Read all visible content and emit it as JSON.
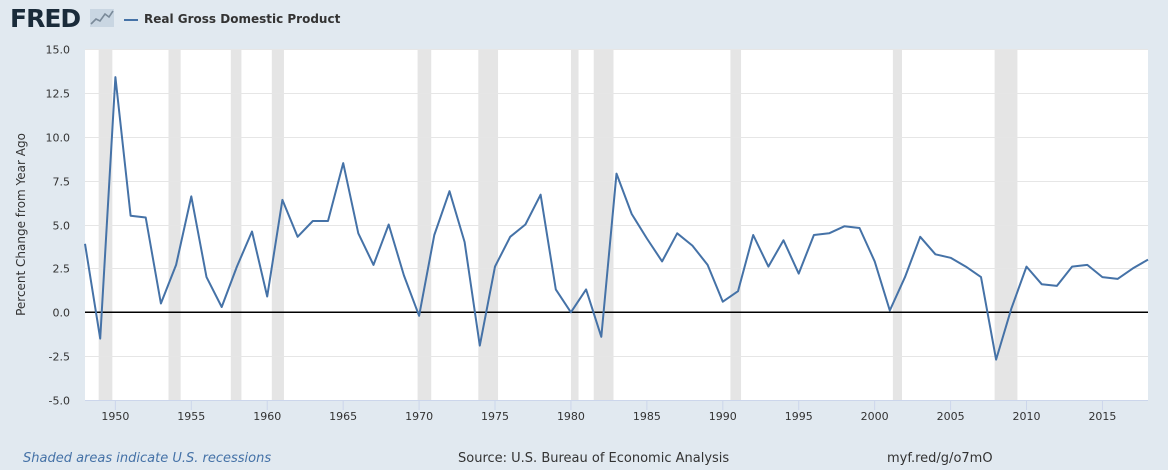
{
  "header": {
    "logo_text": "FRED",
    "legend_label": "Real Gross Domestic Product"
  },
  "footer": {
    "recession_note": "Shaded areas indicate U.S. recessions",
    "source": "Source: U.S. Bureau of Economic Analysis",
    "short_url": "myf.red/g/o7mO"
  },
  "colors": {
    "series": "#4572a7",
    "background": "#e1e9f0",
    "plot_background": "#ffffff",
    "recession_shade": "#e5e5e5",
    "zero_line": "#000000"
  },
  "chart_data": {
    "type": "line",
    "title": "",
    "xlabel": "",
    "ylabel": "Percent Change from Year Ago",
    "xlim": [
      1948.0,
      2018.0
    ],
    "ylim": [
      -5.0,
      15.0
    ],
    "grid": true,
    "legend": "top-left",
    "y_ticks": [
      "15.0",
      "12.5",
      "10.0",
      "7.5",
      "5.0",
      "2.5",
      "0.0",
      "-2.5",
      "-5.0"
    ],
    "x_ticks": [
      "1950",
      "1955",
      "1960",
      "1965",
      "1970",
      "1975",
      "1980",
      "1985",
      "1990",
      "1995",
      "2000",
      "2005",
      "2010",
      "2015"
    ],
    "recessions": [
      [
        1948.9,
        1949.8
      ],
      [
        1953.5,
        1954.3
      ],
      [
        1957.6,
        1958.3
      ],
      [
        1960.3,
        1961.1
      ],
      [
        1969.9,
        1970.8
      ],
      [
        1973.9,
        1975.2
      ],
      [
        1980.0,
        1980.5
      ],
      [
        1981.5,
        1982.8
      ],
      [
        1990.5,
        1991.2
      ],
      [
        2001.2,
        2001.8
      ],
      [
        2007.9,
        2009.4
      ]
    ],
    "series": [
      {
        "name": "Real Gross Domestic Product",
        "x": [
          1948,
          1949,
          1950,
          1951,
          1952,
          1953,
          1954,
          1955,
          1956,
          1957,
          1958,
          1959,
          1960,
          1961,
          1962,
          1963,
          1964,
          1965,
          1966,
          1967,
          1968,
          1969,
          1970,
          1971,
          1972,
          1973,
          1974,
          1975,
          1976,
          1977,
          1978,
          1979,
          1980,
          1981,
          1982,
          1983,
          1984,
          1985,
          1986,
          1987,
          1988,
          1989,
          1990,
          1991,
          1992,
          1993,
          1994,
          1995,
          1996,
          1997,
          1998,
          1999,
          2000,
          2001,
          2002,
          2003,
          2004,
          2005,
          2006,
          2007,
          2008,
          2009,
          2010,
          2011,
          2012,
          2013,
          2014,
          2015,
          2016,
          2017,
          2018
        ],
        "values": [
          3.9,
          -1.5,
          13.4,
          5.5,
          5.4,
          0.5,
          2.7,
          6.6,
          2.0,
          0.3,
          2.6,
          4.6,
          0.9,
          6.4,
          4.3,
          5.2,
          5.2,
          8.5,
          4.5,
          2.7,
          5.0,
          2.1,
          -0.2,
          4.4,
          6.9,
          4.0,
          -1.9,
          2.6,
          4.3,
          5.0,
          6.7,
          1.3,
          0.0,
          1.3,
          -1.4,
          7.9,
          5.6,
          4.2,
          2.9,
          4.5,
          3.8,
          2.7,
          0.6,
          1.2,
          4.4,
          2.6,
          4.1,
          2.2,
          4.4,
          4.5,
          4.9,
          4.8,
          2.9,
          0.1,
          2.0,
          4.3,
          3.3,
          3.1,
          2.6,
          2.0,
          -2.7,
          0.2,
          2.6,
          1.6,
          1.5,
          2.6,
          2.7,
          2.0,
          1.9,
          2.5,
          3.0
        ]
      }
    ]
  }
}
